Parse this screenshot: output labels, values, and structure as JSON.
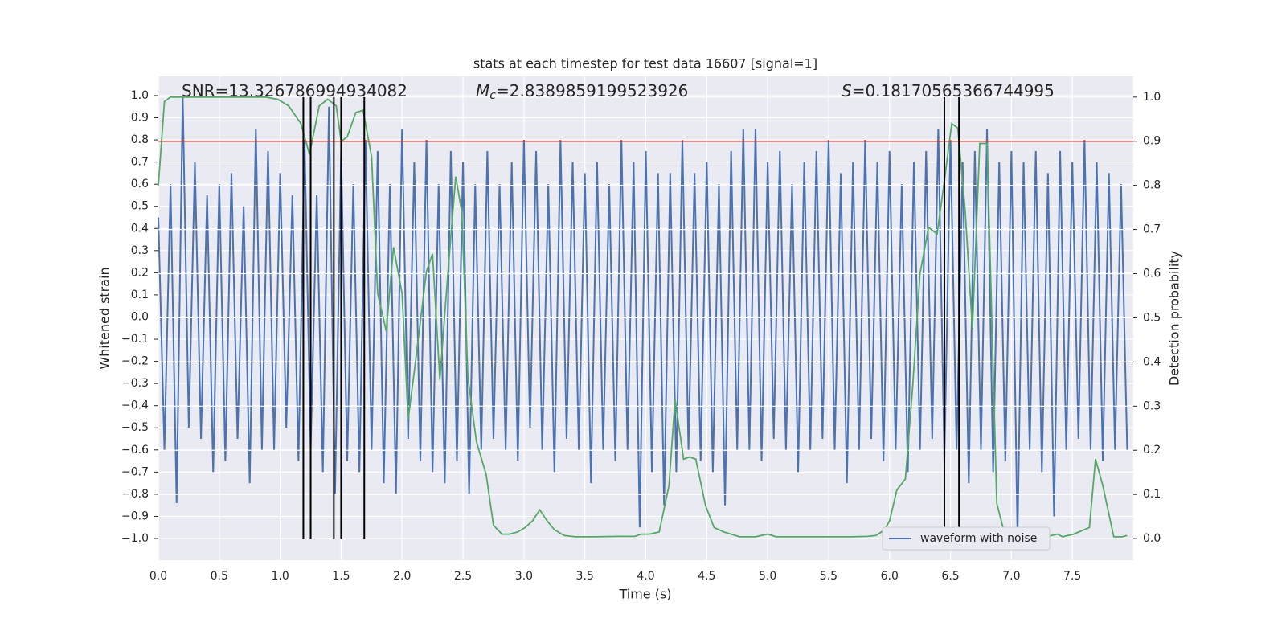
{
  "chart_data": {
    "type": "line",
    "title": "stats at each timestep for test data 16607 [signal=1]",
    "x_label": "Time (s)",
    "y_label": "Whitened strain",
    "y2_label": "Detection probability",
    "xlim": [
      0,
      8.0
    ],
    "ylim": [
      -1.098,
      1.087
    ],
    "y2lim": [
      -0.049,
      1.047
    ],
    "xticks": [
      {
        "value": 0,
        "label": "0.0"
      },
      0.5,
      {
        "value": 1,
        "label": "1.0"
      },
      1.5,
      {
        "value": 2,
        "label": "2.0"
      },
      2.5,
      {
        "value": 3,
        "label": "3.0"
      },
      3.5,
      {
        "value": 4,
        "label": "4.0"
      },
      4.5,
      {
        "value": 5,
        "label": "5.0"
      },
      5.5,
      {
        "value": 6,
        "label": "6.0"
      },
      6.5,
      {
        "value": 7,
        "label": "7.0"
      },
      7.5
    ],
    "yticks": [
      {
        "value": -1,
        "label": "−1.0"
      },
      {
        "value": -0.9,
        "label": "−0.9"
      },
      {
        "value": -0.8,
        "label": "−0.8"
      },
      {
        "value": -0.7,
        "label": "−0.7"
      },
      {
        "value": -0.6,
        "label": "−0.6"
      },
      {
        "value": -0.5,
        "label": "−0.5"
      },
      {
        "value": -0.4,
        "label": "−0.4"
      },
      {
        "value": -0.3,
        "label": "−0.3"
      },
      {
        "value": -0.2,
        "label": "−0.2"
      },
      {
        "value": -0.1,
        "label": "−0.1"
      },
      {
        "value": 0,
        "label": "0.0"
      },
      0.1,
      0.2,
      0.3,
      0.4,
      0.5,
      0.6,
      0.7,
      0.8,
      0.9,
      {
        "value": 1,
        "label": "1.0"
      }
    ],
    "y2ticks": [
      {
        "value": 0,
        "label": "0.0"
      },
      0.1,
      0.2,
      0.3,
      0.4,
      0.5,
      0.6,
      0.7,
      0.8,
      0.9,
      {
        "value": 1,
        "label": "1.0"
      }
    ],
    "grid": true,
    "legend": "lower right",
    "series": [
      {
        "name": "waveform with noise",
        "color": "#4c72b0",
        "x": [
          0,
          0.05,
          0.1,
          0.15,
          0.2,
          0.25,
          0.3,
          0.35,
          0.4,
          0.45,
          0.5,
          0.55,
          0.6,
          0.65,
          0.7,
          0.75,
          0.8,
          0.85,
          0.9,
          0.95,
          1,
          1.05,
          1.1,
          1.15,
          1.2,
          1.25,
          1.3,
          1.35,
          1.4,
          1.45,
          1.5,
          1.55,
          1.6,
          1.65,
          1.7,
          1.75,
          1.8,
          1.85,
          1.9,
          1.95,
          2,
          2.05,
          2.1,
          2.15,
          2.2,
          2.25,
          2.3,
          2.35,
          2.4,
          2.45,
          2.5,
          2.55,
          2.6,
          2.65,
          2.7,
          2.75,
          2.8,
          2.85,
          2.9,
          2.95,
          3,
          3.05,
          3.1,
          3.15,
          3.2,
          3.25,
          3.3,
          3.35,
          3.4,
          3.45,
          3.5,
          3.55,
          3.6,
          3.65,
          3.7,
          3.75,
          3.8,
          3.85,
          3.9,
          3.95,
          4,
          4.05,
          4.1,
          4.15,
          4.2,
          4.25,
          4.3,
          4.35,
          4.4,
          4.45,
          4.5,
          4.55,
          4.6,
          4.65,
          4.7,
          4.75,
          4.8,
          4.85,
          4.9,
          4.95,
          5,
          5.05,
          5.1,
          5.15,
          5.2,
          5.25,
          5.3,
          5.35,
          5.4,
          5.45,
          5.5,
          5.55,
          5.6,
          5.65,
          5.7,
          5.75,
          5.8,
          5.85,
          5.9,
          5.95,
          6,
          6.05,
          6.1,
          6.15,
          6.2,
          6.25,
          6.3,
          6.35,
          6.4,
          6.45,
          6.5,
          6.55,
          6.6,
          6.65,
          6.7,
          6.75,
          6.8,
          6.85,
          6.9,
          6.95,
          7,
          7.05,
          7.1,
          7.15,
          7.2,
          7.25,
          7.3,
          7.35,
          7.4,
          7.45,
          7.5,
          7.55,
          7.6,
          7.65,
          7.7,
          7.75,
          7.8,
          7.85,
          7.9,
          7.95
        ],
        "values": [
          0.45,
          -0.6,
          0.6,
          -0.84,
          1.0,
          -0.5,
          0.7,
          -0.55,
          0.55,
          -0.7,
          0.6,
          -0.65,
          0.65,
          -0.55,
          0.5,
          -0.75,
          0.85,
          -0.6,
          0.75,
          -0.6,
          0.65,
          -0.5,
          0.55,
          -0.65,
          0.8,
          -0.6,
          0.55,
          -0.7,
          0.95,
          -0.8,
          0.75,
          -0.65,
          0.6,
          -0.7,
          0.8,
          -0.6,
          0.75,
          -0.75,
          0.6,
          -0.8,
          0.85,
          -0.55,
          0.7,
          -0.65,
          0.8,
          -0.7,
          0.6,
          -0.75,
          0.75,
          -0.65,
          0.7,
          -0.8,
          0.6,
          -0.6,
          0.75,
          -0.55,
          0.6,
          -0.6,
          0.7,
          -0.65,
          0.8,
          -0.5,
          0.75,
          -0.6,
          0.6,
          -0.7,
          0.8,
          -0.55,
          0.7,
          -0.6,
          0.65,
          -0.75,
          0.7,
          -0.6,
          0.6,
          -0.65,
          0.8,
          -0.6,
          0.7,
          -0.95,
          0.75,
          -0.7,
          0.65,
          -0.85,
          0.65,
          -0.7,
          0.8,
          -0.6,
          0.65,
          -0.65,
          0.7,
          -0.7,
          0.6,
          -0.85,
          0.75,
          -0.6,
          0.85,
          -0.6,
          0.85,
          -0.65,
          0.7,
          -0.55,
          0.75,
          -0.6,
          0.6,
          -0.7,
          0.7,
          -0.6,
          0.75,
          -0.55,
          0.8,
          -0.6,
          0.65,
          -0.75,
          0.7,
          -0.6,
          0.8,
          -0.55,
          0.7,
          -0.65,
          0.75,
          -0.6,
          0.6,
          -0.7,
          0.7,
          -0.6,
          0.75,
          -0.55,
          0.85,
          -0.65,
          0.8,
          -0.6,
          0.7,
          -0.75,
          0.75,
          -0.6,
          0.85,
          -0.7,
          0.7,
          -0.65,
          0.75,
          -1.0,
          0.7,
          -0.6,
          0.75,
          -0.7,
          0.65,
          -0.9,
          0.75,
          -0.6,
          0.7,
          -0.55,
          0.8,
          -0.6,
          0.7,
          -0.65,
          0.65,
          -0.6,
          0.6,
          -0.6
        ]
      },
      {
        "color": "#55a868",
        "axis": "y2",
        "x": [
          0,
          0.05,
          0.1,
          0.88,
          0.98,
          1.07,
          1.17,
          1.24,
          1.32,
          1.39,
          1.46,
          1.5,
          1.55,
          1.62,
          1.68,
          1.75,
          1.8,
          1.87,
          1.93,
          2.0,
          2.05,
          2.11,
          2.2,
          2.25,
          2.31,
          2.37,
          2.44,
          2.49,
          2.54,
          2.61,
          2.69,
          2.75,
          2.82,
          2.88,
          2.95,
          3.01,
          3.07,
          3.13,
          3.19,
          3.25,
          3.33,
          3.42,
          3.58,
          3.78,
          3.91,
          3.96,
          4.03,
          4.11,
          4.19,
          4.24,
          4.31,
          4.36,
          4.41,
          4.49,
          4.56,
          4.64,
          4.77,
          4.9,
          5.0,
          5.07,
          5.23,
          5.69,
          5.82,
          5.89,
          5.96,
          6.0,
          6.06,
          6.13,
          6.19,
          6.25,
          6.32,
          6.39,
          6.45,
          6.51,
          6.56,
          6.62,
          6.68,
          6.74,
          6.8,
          6.88,
          6.95,
          7.08,
          7.28,
          7.38,
          7.42,
          7.51,
          7.64,
          7.69,
          7.75,
          7.84,
          7.91,
          7.95
        ],
        "values": [
          0.8,
          0.99,
          1.0,
          1.0,
          0.995,
          0.98,
          0.94,
          0.87,
          0.98,
          0.995,
          0.98,
          0.9,
          0.91,
          0.965,
          0.97,
          0.865,
          0.555,
          0.47,
          0.66,
          0.555,
          0.27,
          0.4,
          0.605,
          0.645,
          0.36,
          0.58,
          0.82,
          0.74,
          0.365,
          0.22,
          0.145,
          0.03,
          0.01,
          0.01,
          0.015,
          0.025,
          0.04,
          0.065,
          0.04,
          0.02,
          0.007,
          0.004,
          0.004,
          0.005,
          0.005,
          0.01,
          0.01,
          0.015,
          0.12,
          0.315,
          0.18,
          0.185,
          0.18,
          0.075,
          0.025,
          0.015,
          0.004,
          0.004,
          0.01,
          0.004,
          0.004,
          0.004,
          0.005,
          0.007,
          0.02,
          0.04,
          0.11,
          0.135,
          0.345,
          0.6,
          0.705,
          0.69,
          0.81,
          0.94,
          0.93,
          0.745,
          0.475,
          0.895,
          0.895,
          0.08,
          0.004,
          0.004,
          0.004,
          0.01,
          0.004,
          0.01,
          0.025,
          0.18,
          0.12,
          0.004,
          0.004,
          0.007
        ]
      }
    ],
    "hlines": [
      {
        "y": 0.9,
        "axis": "y2",
        "color": "#c0392b"
      }
    ],
    "vlines": {
      "x": [
        1.19,
        1.25,
        1.44,
        1.5,
        1.69,
        6.45,
        6.57
      ],
      "ymin": 0,
      "ymax": 1,
      "axis": "y2",
      "color": "#000000"
    },
    "annotations": [
      {
        "text": "SNR=13.326786994934082"
      },
      {
        "symbol": "M",
        "subscript": "c",
        "text": "=2.8389859199523926"
      },
      {
        "symbol": "S",
        "text": "=0.18170565366744995"
      }
    ]
  }
}
